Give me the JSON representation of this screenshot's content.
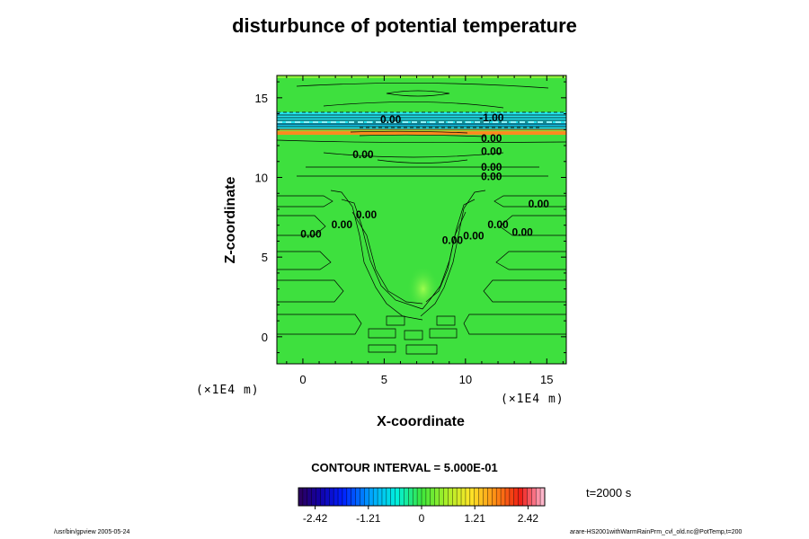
{
  "title": "disturbunce of potential temperature",
  "chart_data": {
    "type": "contour",
    "variable": "disturbunce of potential temperature",
    "xlabel": "X-coordinate",
    "ylabel": "Z-coordinate",
    "x_unit": "(×1E4 m)",
    "y_unit": "(×1E4 m)",
    "xlim": [
      -1.6,
      16.2
    ],
    "ylim": [
      -1.7,
      16.4
    ],
    "x_ticks": [
      "0",
      "5",
      "10",
      "15"
    ],
    "y_ticks": [
      "0",
      "5",
      "10",
      "15"
    ],
    "contour_interval_label": "CONTOUR INTERVAL = 5.000E-01",
    "contour_interval": 0.5,
    "time_label": "t=2000 s",
    "colorbar": {
      "min": -2.8,
      "max": 2.8,
      "ticks": [
        "-2.42",
        "-1.21",
        "0",
        "1.21",
        "2.42"
      ],
      "colormap": "rainbow"
    },
    "contour_labels": [
      {
        "text": "0.00",
        "x": 5.4,
        "z": 13.6
      },
      {
        "text": "-1.00",
        "x": 11.6,
        "z": 13.7
      },
      {
        "text": "0.00",
        "x": 11.6,
        "z": 12.4
      },
      {
        "text": "0.00",
        "x": 11.6,
        "z": 11.6
      },
      {
        "text": "0.00",
        "x": 3.7,
        "z": 11.4
      },
      {
        "text": "0.00",
        "x": 11.6,
        "z": 10.6
      },
      {
        "text": "0.00",
        "x": 11.6,
        "z": 10.0
      },
      {
        "text": "0.00",
        "x": 14.5,
        "z": 8.3
      },
      {
        "text": "0.00",
        "x": 3.9,
        "z": 7.6
      },
      {
        "text": "0.00",
        "x": 2.4,
        "z": 7.0
      },
      {
        "text": "0.00",
        "x": 0.5,
        "z": 6.4
      },
      {
        "text": "0.00",
        "x": 12.0,
        "z": 7.0
      },
      {
        "text": "0.00",
        "x": 13.5,
        "z": 6.5
      },
      {
        "text": "0.00",
        "x": 9.2,
        "z": 6.0
      },
      {
        "text": "0.00",
        "x": 10.5,
        "z": 6.3
      }
    ]
  },
  "footer": {
    "left": "/usr/bin/gpview 2005-05-24",
    "right": "arare-HS2001withWarmRainPrm_cvl_old.nc@PotTemp,t=200"
  }
}
